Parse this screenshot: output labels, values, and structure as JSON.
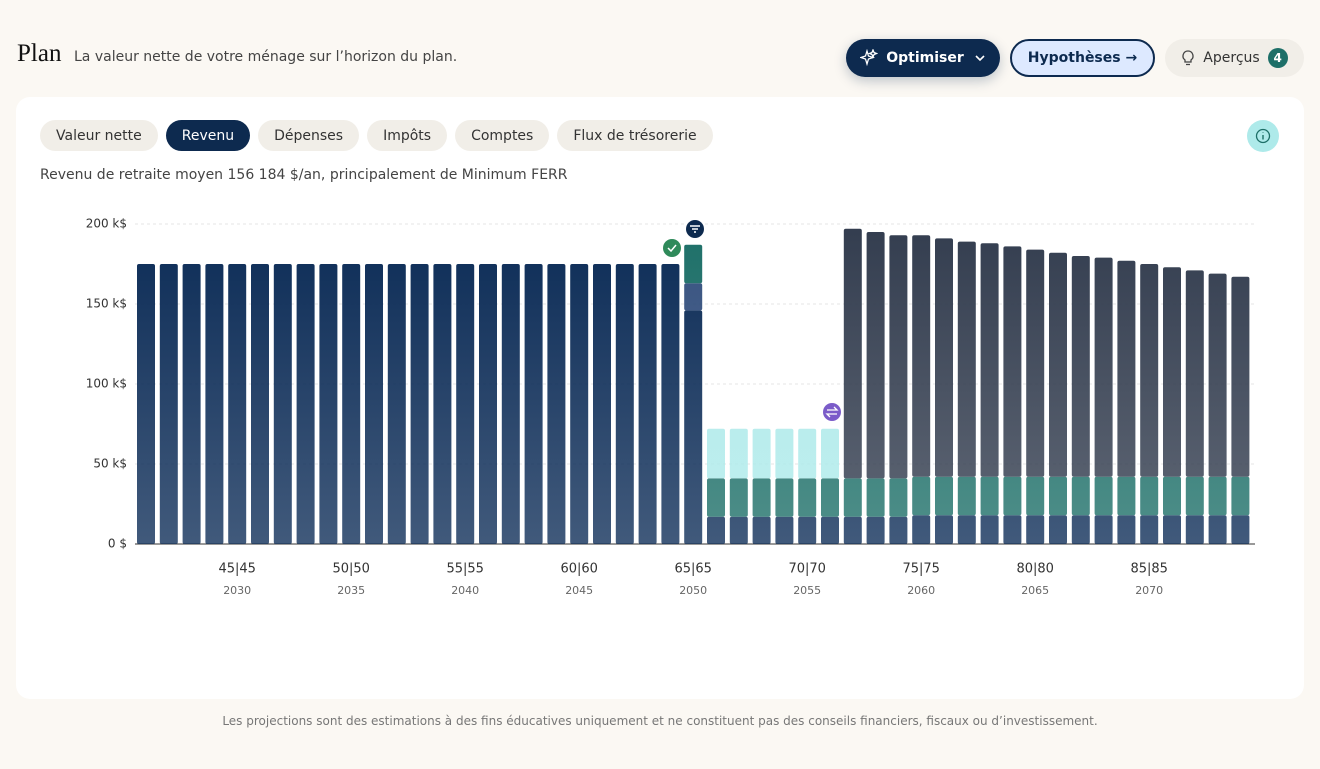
{
  "header": {
    "title": "Plan",
    "subtitle": "La valeur nette de votre ménage sur l’horizon du plan.",
    "buttons": [
      "Optimiser",
      "Hypothèses →",
      "Aperçus"
    ],
    "badge": "4"
  },
  "tabs": [
    "Valeur nette",
    "Revenu",
    "Dépenses",
    "Impôts",
    "Comptes",
    "Flux de trésorerie"
  ],
  "active_tab": 1,
  "summary": "Revenu de retraite moyen 156 184 $/an, principalement de Minimum FERR",
  "chart_data": {
    "type": "stacked-bar",
    "categories": [
      null,
      null,
      null,
      null,
      "2030",
      null,
      null,
      null,
      null,
      "2035",
      null,
      null,
      null,
      null,
      "2040",
      null,
      null,
      null,
      null,
      "2045",
      null,
      null,
      null,
      null,
      "2050",
      null,
      null,
      null,
      null,
      "2055",
      null,
      null,
      null,
      null,
      "2060",
      null,
      null,
      null,
      null,
      "2065",
      null,
      null,
      null,
      null,
      "2070",
      null,
      null,
      null,
      null
    ],
    "category_ages": [
      null,
      null,
      null,
      null,
      "45|45",
      null,
      null,
      null,
      null,
      "50|50",
      null,
      null,
      null,
      null,
      "55|55",
      null,
      null,
      null,
      null,
      "60|60",
      null,
      null,
      null,
      null,
      "65|65",
      null,
      null,
      null,
      null,
      "70|70",
      null,
      null,
      null,
      null,
      "75|75",
      null,
      null,
      null,
      null,
      "80|80",
      null,
      null,
      null,
      null,
      "85|85",
      null,
      null,
      null,
      null
    ],
    "series": [
      {
        "color": "#0b2b56",
        "values": [
          175,
          175,
          175,
          175,
          175,
          175,
          175,
          175,
          175,
          175,
          175,
          175,
          175,
          175,
          175,
          175,
          175,
          175,
          175,
          175,
          175,
          175,
          175,
          175,
          146,
          17,
          17,
          17,
          17,
          17,
          17,
          17,
          17,
          17,
          18,
          18,
          18,
          18,
          18,
          18,
          18,
          18,
          18,
          18,
          18,
          18,
          18,
          18,
          18
        ]
      },
      {
        "color": "#34507e",
        "values": [
          null,
          null,
          null,
          null,
          null,
          null,
          null,
          null,
          null,
          null,
          null,
          null,
          null,
          null,
          null,
          null,
          null,
          null,
          null,
          null,
          null,
          null,
          null,
          null,
          17,
          null,
          null,
          null,
          null,
          null,
          null,
          null,
          null,
          null,
          null,
          null,
          null,
          null,
          null,
          null,
          null,
          null,
          null,
          null,
          null,
          null,
          null,
          null,
          null
        ]
      },
      {
        "color": "#1d6f68",
        "values": [
          null,
          null,
          null,
          null,
          null,
          null,
          null,
          null,
          null,
          null,
          null,
          null,
          null,
          null,
          null,
          null,
          null,
          null,
          null,
          null,
          null,
          null,
          null,
          null,
          24,
          24,
          24,
          24,
          24,
          24,
          24,
          24,
          24,
          24,
          24,
          24,
          24,
          24,
          24,
          24,
          24,
          24,
          24,
          24,
          24,
          24,
          24,
          24,
          24
        ]
      },
      {
        "color": "#aeeaea",
        "values": [
          null,
          null,
          null,
          null,
          null,
          null,
          null,
          null,
          null,
          null,
          null,
          null,
          null,
          null,
          null,
          null,
          null,
          null,
          null,
          null,
          null,
          null,
          null,
          null,
          null,
          31,
          31,
          31,
          31,
          31,
          31,
          null,
          null,
          null,
          null,
          null,
          null,
          null,
          null,
          null,
          null,
          null,
          null,
          null,
          null,
          null,
          null,
          null,
          null
        ]
      },
      {
        "color": "#333d4f",
        "values": [
          null,
          null,
          null,
          null,
          null,
          null,
          null,
          null,
          null,
          null,
          null,
          null,
          null,
          null,
          null,
          null,
          null,
          null,
          null,
          null,
          null,
          null,
          null,
          null,
          null,
          null,
          null,
          null,
          null,
          null,
          null,
          156,
          154,
          152,
          151,
          149,
          147,
          146,
          144,
          142,
          140,
          138,
          137,
          135,
          133,
          131,
          129,
          127,
          125
        ]
      }
    ],
    "ylim": [
      0,
      200
    ],
    "yticks": [
      {
        "value": 0,
        "label": "0 $"
      },
      {
        "value": 50,
        "label": "50 k$"
      },
      {
        "value": 100,
        "label": "100 k$"
      },
      {
        "value": 150,
        "label": "150 k$"
      },
      {
        "value": 200,
        "label": "200 k$"
      }
    ],
    "grid": true
  },
  "footer": "Les projections sont des estimations à des fins éducatives uniquement et ne constituent pas des conseils financiers, fiscaux ou d’investissement."
}
